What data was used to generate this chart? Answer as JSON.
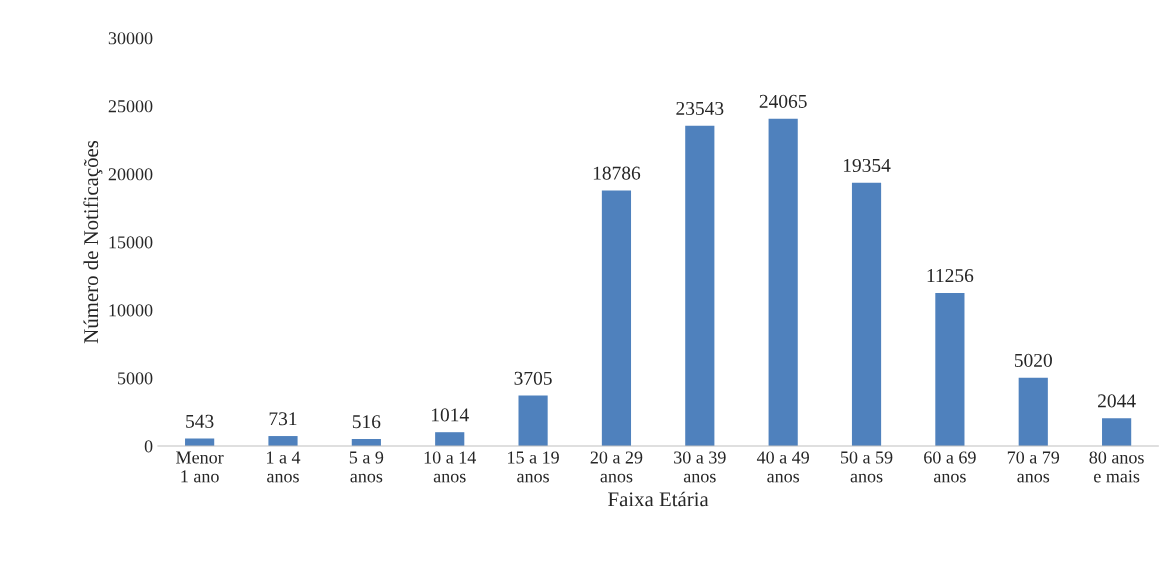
{
  "chart_data": {
    "type": "bar",
    "xlabel": "Faixa Etária",
    "ylabel": "Número de Notificações",
    "categories": [
      "Menor\n1 ano",
      "1 a 4\nanos",
      "5 a 9\nanos",
      "10 a 14\nanos",
      "15 a 19\nanos",
      "20 a 29\nanos",
      "30 a 39\nanos",
      "40 a 49\nanos",
      "50 a 59\nanos",
      "60 a 69\nanos",
      "70 a 79\nanos",
      "80 anos\ne mais"
    ],
    "values": [
      543,
      731,
      516,
      1014,
      3705,
      18786,
      23543,
      24065,
      19354,
      11256,
      5020,
      2044
    ],
    "color": "#4f81bd",
    "ylim": [
      0,
      30000
    ],
    "yticks": [
      0,
      5000,
      10000,
      15000,
      20000,
      25000,
      30000
    ],
    "grid": false,
    "data_labels": true
  }
}
